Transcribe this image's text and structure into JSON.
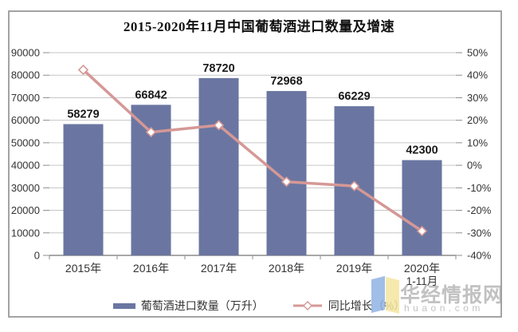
{
  "chart_data": {
    "type": "combo-bar-line",
    "title": "2015-2020年11月中国葡萄酒进口数量及增速",
    "categories": [
      "2015年",
      "2016年",
      "2017年",
      "2018年",
      "2019年",
      "2020年"
    ],
    "last_category_note": "1-11月",
    "series": [
      {
        "name": "葡萄酒进口数量（万升）",
        "type": "bar",
        "axis": "left",
        "values": [
          58279,
          66842,
          78720,
          72968,
          66229,
          42300
        ],
        "data_labels": [
          "58279",
          "66842",
          "78720",
          "72968",
          "66229",
          "42300"
        ]
      },
      {
        "name": "同比增长（%）",
        "type": "line",
        "axis": "right",
        "values": [
          42.4,
          14.7,
          17.8,
          -7.3,
          -9.2,
          -29.2
        ],
        "marker": "diamond-white-fill"
      }
    ],
    "left_axis": {
      "min": 0,
      "max": 90000,
      "step": 10000,
      "ticks": [
        "90000",
        "80000",
        "70000",
        "60000",
        "50000",
        "40000",
        "30000",
        "20000",
        "10000",
        "0"
      ]
    },
    "right_axis": {
      "min": -40,
      "max": 50,
      "step": 10,
      "ticks": [
        "50%",
        "40%",
        "30%",
        "20%",
        "10%",
        "0%",
        "-10%",
        "-20%",
        "-30%",
        "-40%"
      ]
    },
    "grid": true,
    "legend_position": "bottom"
  },
  "colors": {
    "bar": "#6A76A1",
    "line": "#D59896",
    "marker_fill": "#FFFFFF",
    "grid": "#C6C6C6",
    "axis": "#8C8C8C",
    "label": "#333333",
    "title": "#111111",
    "frame_border": "#A3A3A3",
    "watermark_logo_blue": "#8FB3E3",
    "watermark_logo_yellow": "#F4E5A0"
  },
  "watermark": {
    "brand": "华经情报网",
    "domain": "huaon.com"
  }
}
